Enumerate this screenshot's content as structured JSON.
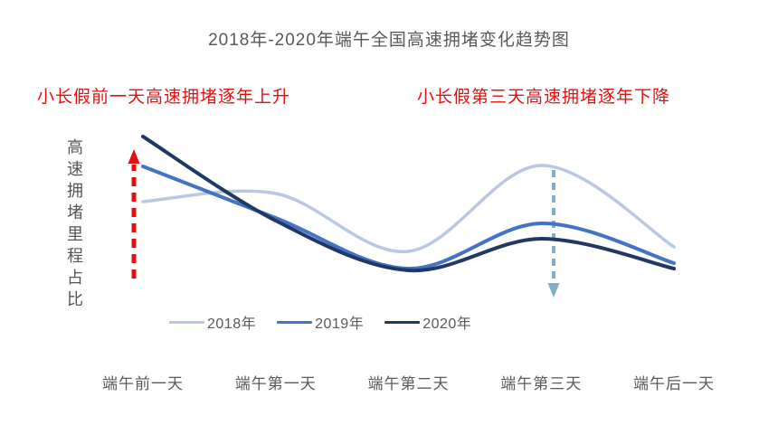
{
  "title": "2018年-2020年端午全国高速拥堵变化趋势图",
  "annotations": {
    "left_text": "小长假前一天高速拥堵逐年上升",
    "right_text": "小长假第三天高速拥堵逐年下降",
    "color": "#e60f0f"
  },
  "chart_data": {
    "type": "line",
    "title": "2018年-2020年端午全国高速拥堵变化趋势图",
    "xlabel": "",
    "ylabel": "高速拥堵里程占比",
    "categories": [
      "端午前一天",
      "端午第一天",
      "端午第二天",
      "端午第三天",
      "端午后一天"
    ],
    "series": [
      {
        "name": "2018年",
        "color": "#b9c7e3",
        "values": [
          60,
          64.5,
          32.5,
          80,
          35
        ]
      },
      {
        "name": "2019年",
        "color": "#4472c4",
        "values": [
          79.5,
          51,
          23,
          48,
          26
        ]
      },
      {
        "name": "2020年",
        "color": "#1f3864",
        "values": [
          96,
          49.5,
          22,
          39.5,
          23
        ]
      }
    ],
    "value_note": "relative congestion index 0-100 estimated from curve heights; no numeric y-axis shown",
    "ylim": [
      0,
      100
    ],
    "grid": false,
    "legend_position": "bottom-left",
    "arrows": [
      {
        "name": "rising-trend-arrow",
        "direction": "up",
        "style": "dashed",
        "color": "#e60f0f",
        "at_category": "端午前一天"
      },
      {
        "name": "falling-trend-arrow",
        "direction": "down",
        "style": "dashed",
        "color": "#7fafc9",
        "at_category": "端午第三天"
      }
    ]
  }
}
